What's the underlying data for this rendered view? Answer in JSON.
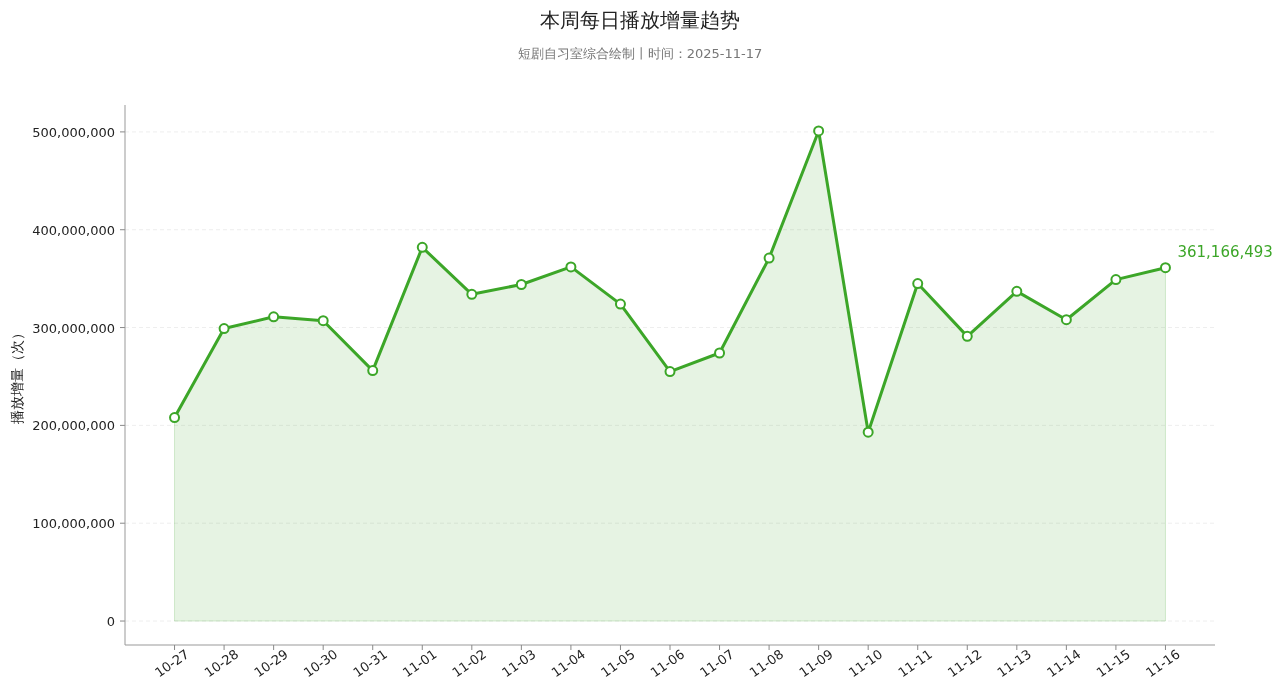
{
  "chart_data": {
    "type": "area",
    "title": "本周每日播放增量趋势",
    "subtitle": "短剧自习室综合绘制丨时间：2025-11-17",
    "ylabel": "播放增量（次）",
    "categories": [
      "10-27",
      "10-28",
      "10-29",
      "10-30",
      "10-31",
      "11-01",
      "11-02",
      "11-03",
      "11-04",
      "11-05",
      "11-06",
      "11-07",
      "11-08",
      "11-09",
      "11-10",
      "11-11",
      "11-12",
      "11-13",
      "11-14",
      "11-15",
      "11-16"
    ],
    "series": [
      {
        "color": "#3ca628",
        "values": [
          208000000,
          299000000,
          311000000,
          307000000,
          256000000,
          382000000,
          334000000,
          344000000,
          362000000,
          324000000,
          255000000,
          274000000,
          371000000,
          501000000,
          193000000,
          345000000,
          291000000,
          337000000,
          308000000,
          349000000,
          361166493
        ],
        "value_labels": [
          null,
          null,
          null,
          null,
          null,
          null,
          null,
          null,
          null,
          null,
          null,
          null,
          null,
          null,
          null,
          null,
          null,
          null,
          null,
          null,
          "361,166,493"
        ]
      }
    ],
    "ylim": [
      -24500000,
      527500000
    ],
    "yticks": [
      {
        "value": 0,
        "label": "0"
      },
      {
        "value": 100000000,
        "label": "100,000,000"
      },
      {
        "value": 200000000,
        "label": "200,000,000"
      },
      {
        "value": 300000000,
        "label": "300,000,000"
      },
      {
        "value": 400000000,
        "label": "400,000,000"
      },
      {
        "value": 500000000,
        "label": "500,000,000"
      }
    ],
    "grid": "y",
    "marker": "circle",
    "line_style": "solid"
  }
}
